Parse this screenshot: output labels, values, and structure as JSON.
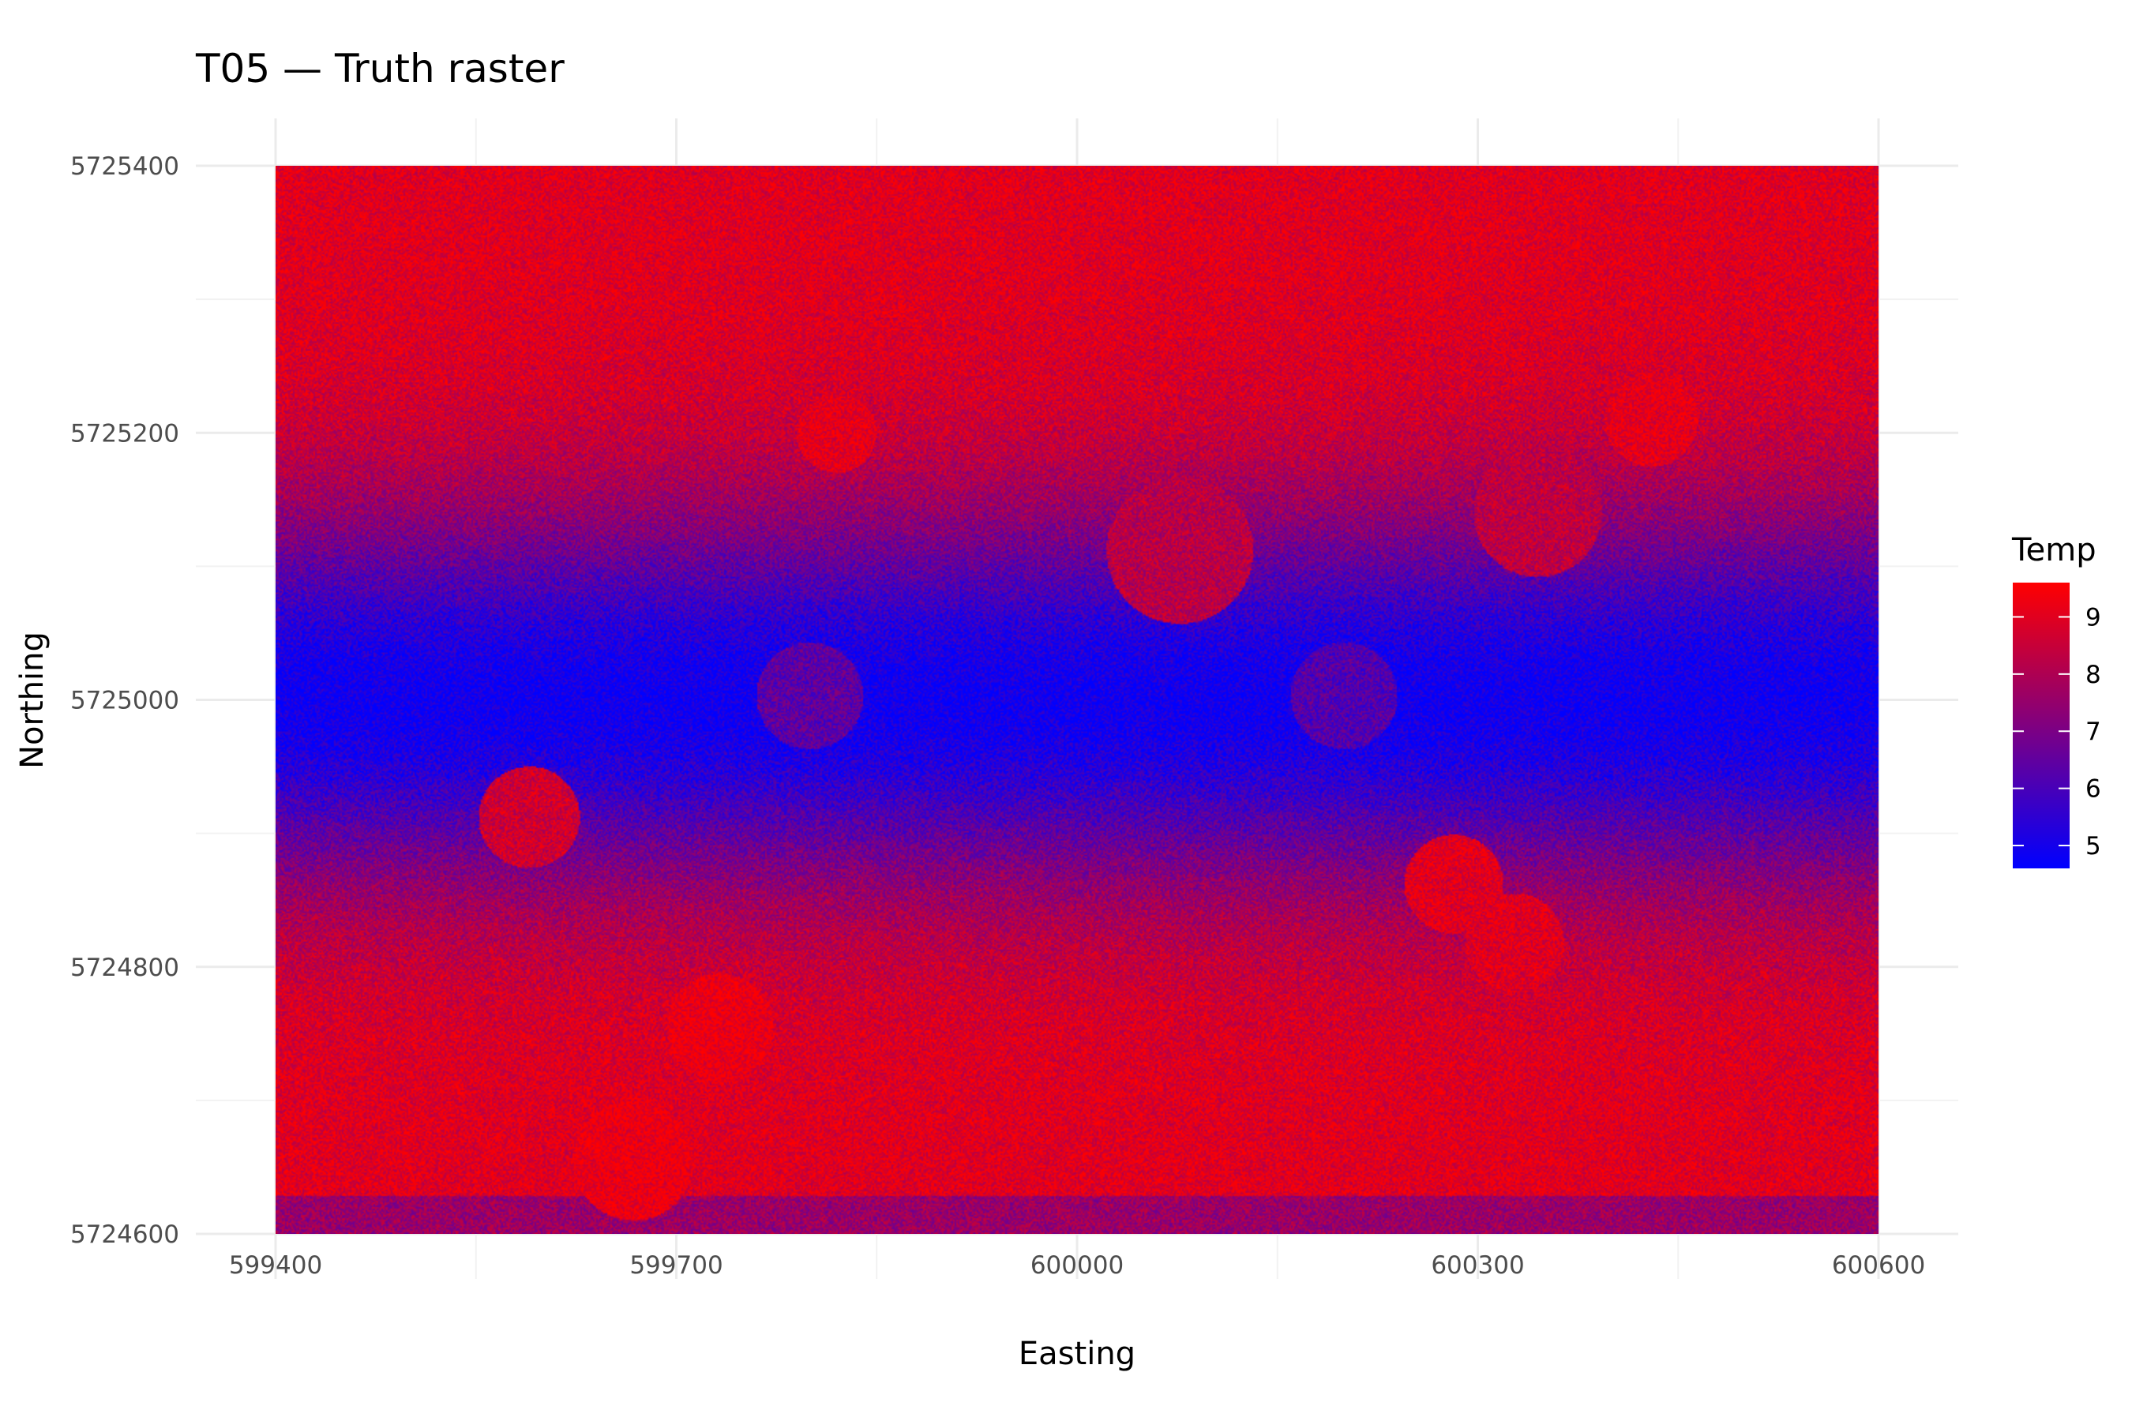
{
  "chart_data": {
    "type": "heatmap",
    "title": "T05 — Truth raster",
    "xlabel": "Easting",
    "ylabel": "Northing",
    "xlim": [
      599400,
      600600
    ],
    "ylim": [
      5724600,
      5725400
    ],
    "x_ticks": [
      "599400",
      "599700",
      "600000",
      "600300",
      "600600"
    ],
    "y_ticks": [
      "5724600",
      "5724800",
      "5725000",
      "5725200",
      "5725400"
    ],
    "x_tick_values": [
      599400,
      599700,
      600000,
      600300,
      600600
    ],
    "y_tick_values": [
      5724600,
      5724800,
      5725000,
      5725200,
      5725400
    ],
    "grid": true,
    "colorbar": {
      "title": "Temp",
      "range": [
        4.6,
        9.6
      ],
      "ticks": [
        5,
        6,
        7,
        8,
        9
      ],
      "tick_labels": [
        "5",
        "6",
        "7",
        "8",
        "9"
      ],
      "low_color": "#0000ff",
      "high_color": "#ff0000",
      "position": "right"
    },
    "field": {
      "base_temp": 9.0,
      "cold_band_center_northing": 5725000,
      "cold_band_min_temp": 4.8,
      "cold_band_halfwidth_m": 140,
      "bottom_strip_temp": 7.6,
      "bottom_strip_top_northing": 5724628
    },
    "circles": [
      {
        "x": 599800,
        "y": 5725003,
        "r": 40,
        "temp": 6.4
      },
      {
        "x": 600200,
        "y": 5725003,
        "r": 40,
        "temp": 6.2
      },
      {
        "x": 600077,
        "y": 5725112,
        "r": 55,
        "temp": 8.2
      },
      {
        "x": 600345,
        "y": 5725140,
        "r": 48,
        "temp": 8.3
      },
      {
        "x": 600430,
        "y": 5725210,
        "r": 35,
        "temp": 9.1
      },
      {
        "x": 599820,
        "y": 5725200,
        "r": 30,
        "temp": 9.1
      },
      {
        "x": 599590,
        "y": 5724912,
        "r": 38,
        "temp": 8.6
      },
      {
        "x": 600282,
        "y": 5724862,
        "r": 37,
        "temp": 9.0
      },
      {
        "x": 600328,
        "y": 5724818,
        "r": 37,
        "temp": 9.0
      },
      {
        "x": 599733,
        "y": 5724755,
        "r": 40,
        "temp": 9.3
      },
      {
        "x": 599668,
        "y": 5724655,
        "r": 45,
        "temp": 9.3
      }
    ]
  }
}
